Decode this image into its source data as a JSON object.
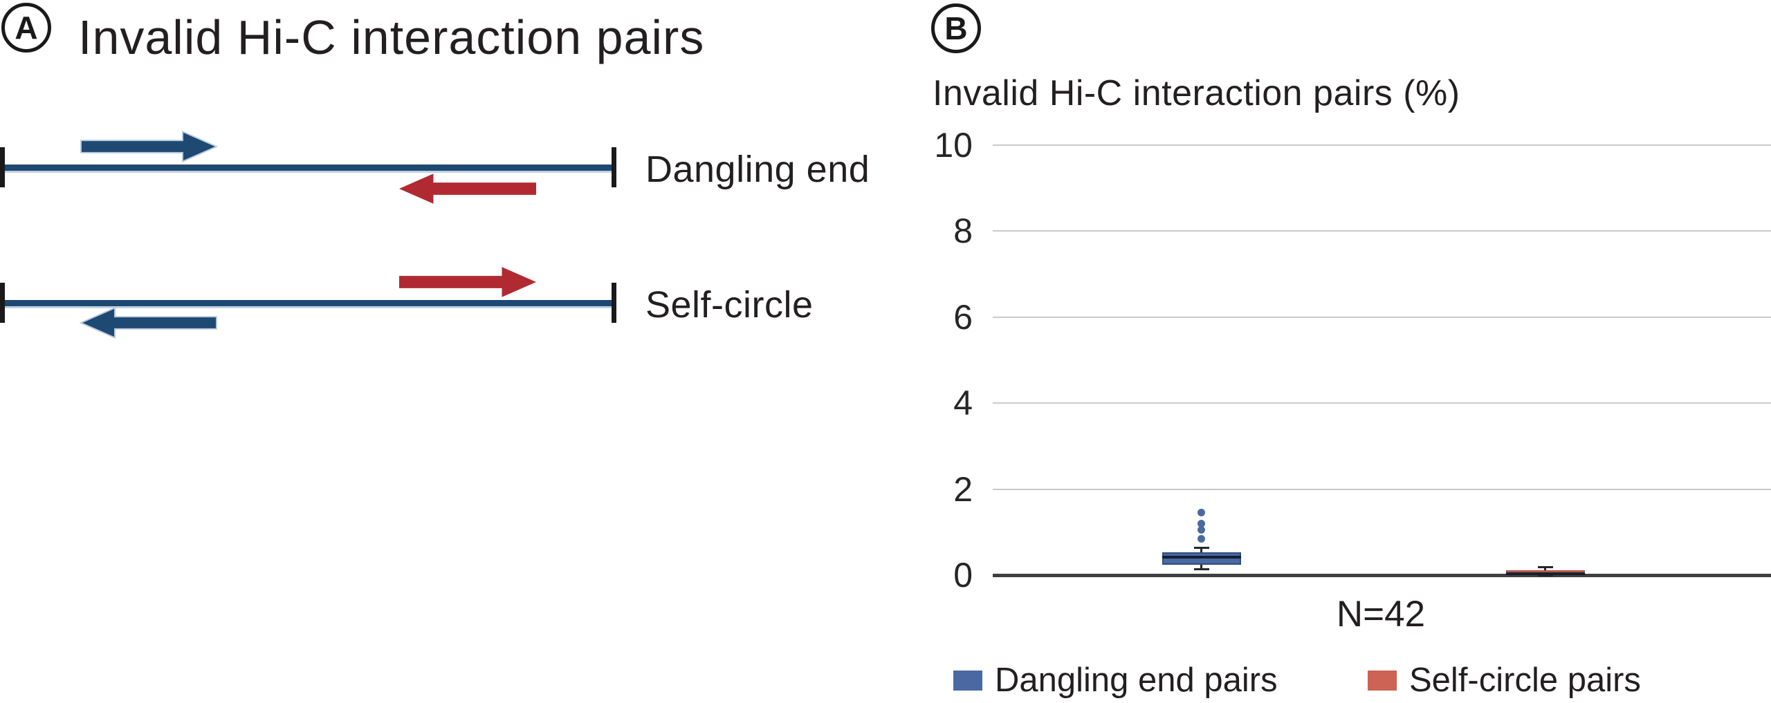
{
  "colors": {
    "diagram_blue": "#1d4973",
    "diagram_red": "#b12a31",
    "box_blue": "#4a69a2",
    "box_red": "#cc6355",
    "text": "#231f20",
    "gridline": "#c9c9c9",
    "zero_axis": "#3f3f3f"
  },
  "panel_a": {
    "label": "A",
    "title": "Invalid Hi-C interaction pairs",
    "rows": [
      {
        "label": "Dangling end",
        "top_arrow": "blue forward read, left end",
        "bottom_arrow": "red reverse read, right end"
      },
      {
        "label": "Self-circle",
        "top_arrow": "red forward read, right end",
        "bottom_arrow": "blue reverse read, left end"
      }
    ]
  },
  "panel_b": {
    "label": "B",
    "title": "Invalid Hi-C interaction pairs (%)",
    "x_axis_label": "N=42",
    "legend": [
      {
        "label": "Dangling end pairs",
        "color": "#4a69a2"
      },
      {
        "label": "Self-circle pairs",
        "color": "#cc6355"
      }
    ]
  },
  "chart_data": {
    "type": "boxplot",
    "title": "Invalid Hi-C interaction pairs (%)",
    "categories": [
      "N=42"
    ],
    "ylim": [
      0,
      10
    ],
    "yticks": [
      0,
      2,
      4,
      6,
      8,
      10
    ],
    "grid": "horizontal light-gray lines, dark zero baseline",
    "legend_position": "bottom",
    "series": [
      {
        "name": "Dangling end pairs",
        "color": "#4a69a2",
        "border_color": "#2f4e7e",
        "center_frac": 0.268,
        "whisker_low": 0.13,
        "q1": 0.24,
        "median": 0.42,
        "q3": 0.53,
        "whisker_high": 0.64,
        "outliers": [
          0.85,
          1.05,
          1.19,
          1.45
        ]
      },
      {
        "name": "Self-circle pairs",
        "color": "#cc6355",
        "border_color": "#b05042",
        "center_frac": 0.71,
        "whisker_low": 0.0,
        "q1": 0.01,
        "median": 0.03,
        "q3": 0.11,
        "whisker_high": 0.18,
        "outliers": []
      }
    ]
  }
}
